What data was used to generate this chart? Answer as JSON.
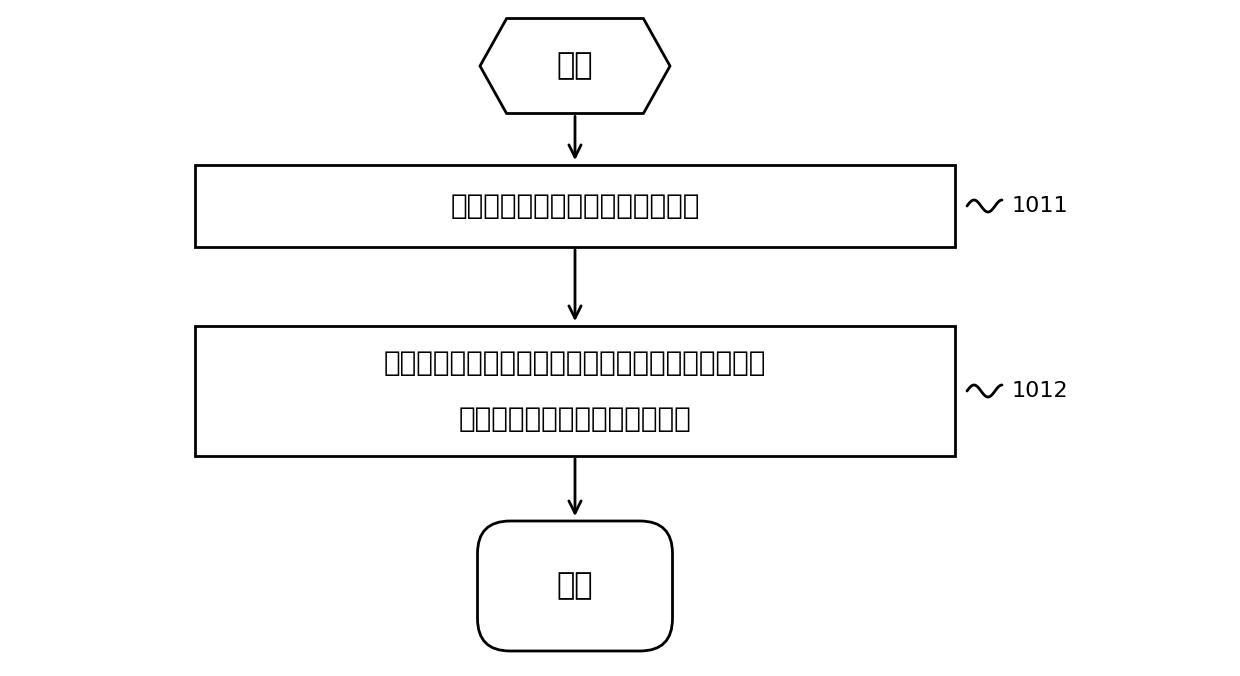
{
  "bg_color": "#ffffff",
  "line_color": "#000000",
  "text_color": "#000000",
  "box_fill": "#ffffff",
  "font_size_main": 20,
  "font_size_ref": 16,
  "start_label": "开始",
  "end_label": "结束",
  "box1_label": "控制所述接线盒网关发送关断信号",
  "box2_line1": "接收每个所述子件接线盒根据所述关断信号检测到的",
  "box2_line2": "每个所述太阳能子件的开路电压",
  "ref1": "1011",
  "ref2": "1012"
}
